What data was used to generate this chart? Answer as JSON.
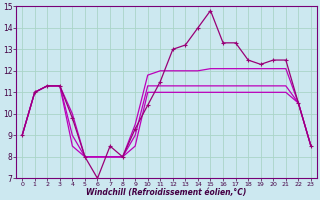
{
  "xlabel": "Windchill (Refroidissement éolien,°C)",
  "xlim": [
    -0.5,
    23.5
  ],
  "ylim": [
    7,
    15
  ],
  "yticks": [
    7,
    8,
    9,
    10,
    11,
    12,
    13,
    14,
    15
  ],
  "xticks": [
    0,
    1,
    2,
    3,
    4,
    5,
    6,
    7,
    8,
    9,
    10,
    11,
    12,
    13,
    14,
    15,
    16,
    17,
    18,
    19,
    20,
    21,
    22,
    23
  ],
  "bg_color": "#cce8f0",
  "grid_color": "#aad4c8",
  "line_color": "#bb00bb",
  "line_color2": "#990077",
  "lines": [
    [
      9.0,
      11.0,
      11.3,
      11.3,
      9.8,
      8.0,
      7.0,
      8.5,
      8.0,
      9.3,
      10.4,
      11.5,
      13.0,
      13.2,
      14.0,
      14.8,
      13.3,
      13.3,
      12.5,
      12.3,
      12.5,
      12.5,
      10.5,
      8.5
    ],
    [
      9.0,
      11.0,
      11.3,
      11.3,
      10.0,
      8.0,
      8.0,
      8.0,
      8.0,
      9.5,
      11.8,
      12.0,
      12.0,
      12.0,
      12.0,
      12.1,
      12.1,
      12.1,
      12.1,
      12.1,
      12.1,
      12.1,
      10.5,
      8.5
    ],
    [
      9.0,
      11.0,
      11.3,
      11.3,
      9.0,
      8.0,
      8.0,
      8.0,
      8.0,
      9.0,
      11.3,
      11.3,
      11.3,
      11.3,
      11.3,
      11.3,
      11.3,
      11.3,
      11.3,
      11.3,
      11.3,
      11.3,
      10.5,
      8.5
    ],
    [
      9.0,
      11.0,
      11.3,
      11.3,
      8.5,
      8.0,
      8.0,
      8.0,
      8.0,
      8.5,
      11.0,
      11.0,
      11.0,
      11.0,
      11.0,
      11.0,
      11.0,
      11.0,
      11.0,
      11.0,
      11.0,
      11.0,
      10.5,
      8.5
    ]
  ]
}
